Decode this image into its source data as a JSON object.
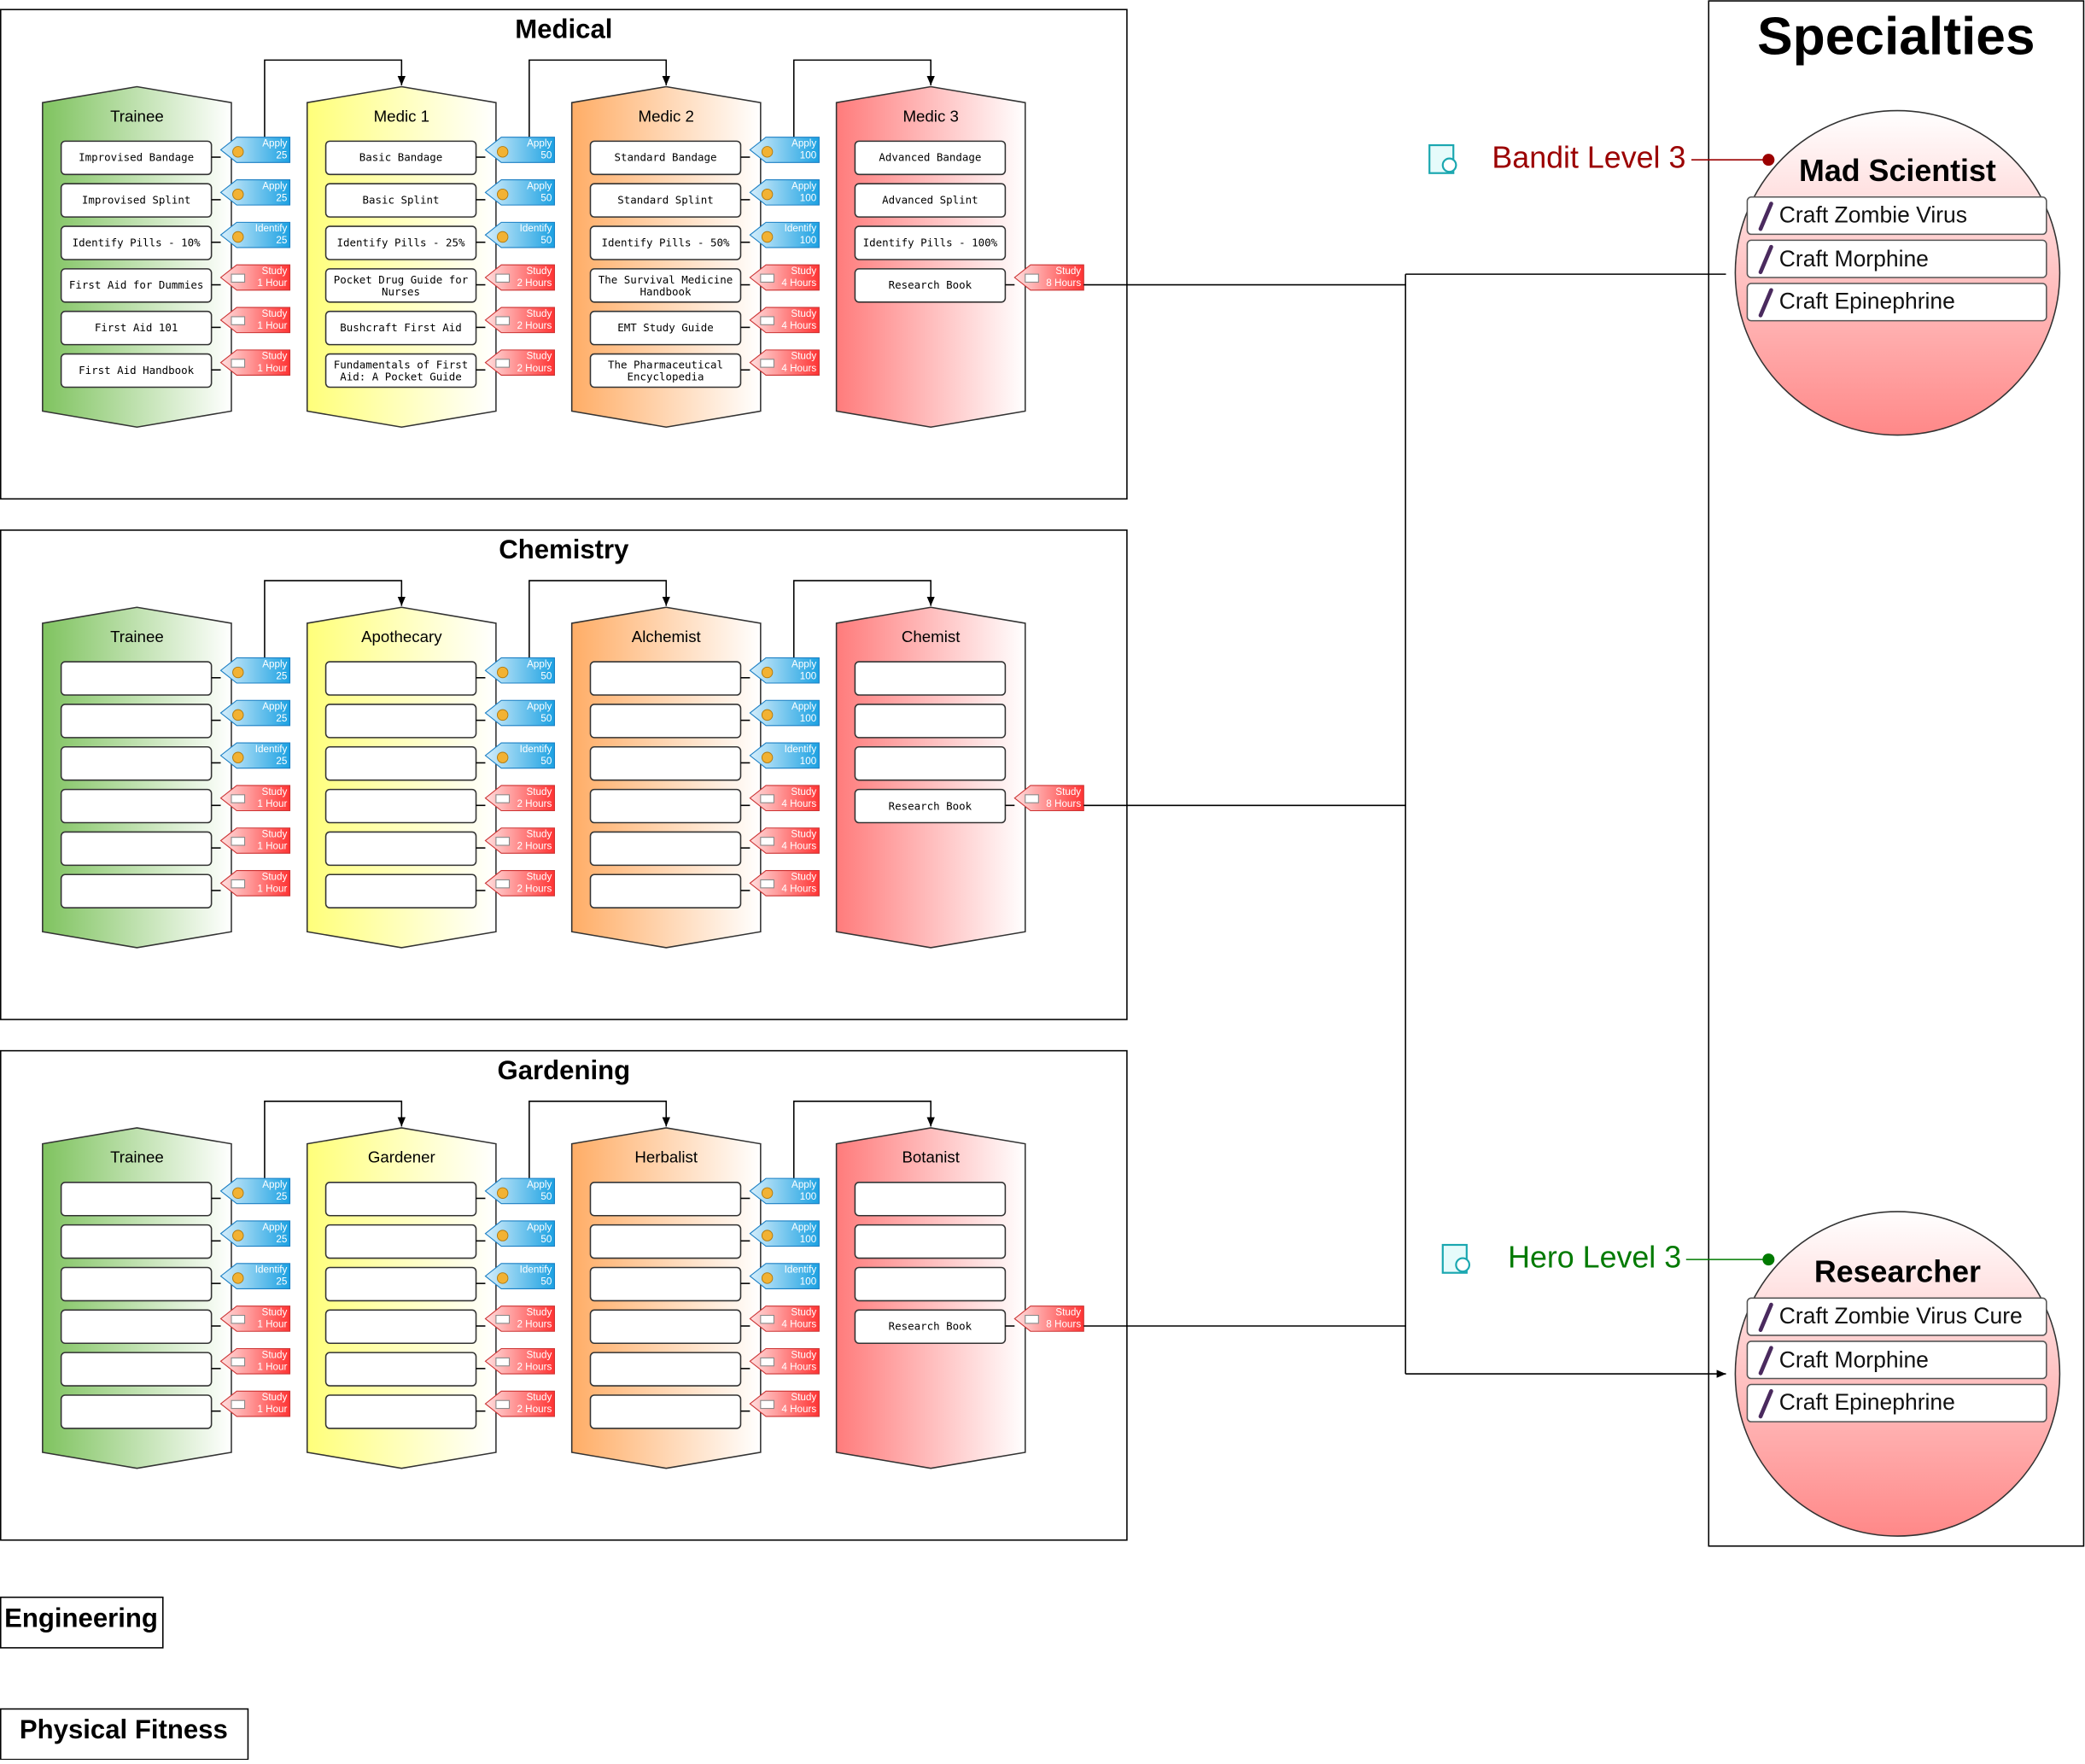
{
  "sections": [
    {
      "title": "Medical",
      "columns": [
        {
          "title": "Trainee",
          "items": [
            "Improvised Bandage",
            "Improvised Splint",
            "Identify Pills - 10%",
            "First Aid for Dummies",
            "First Aid 101",
            "First Aid Handbook"
          ],
          "tags": [
            [
              "Apply",
              "25"
            ],
            [
              "Apply",
              "25"
            ],
            [
              "Identify",
              "25"
            ],
            [
              "Study",
              "1 Hour"
            ],
            [
              "Study",
              "1 Hour"
            ],
            [
              "Study",
              "1 Hour"
            ]
          ]
        },
        {
          "title": "Medic 1",
          "items": [
            "Basic Bandage",
            "Basic Splint",
            "Identify Pills - 25%",
            "Pocket Drug Guide for Nurses",
            "Bushcraft First Aid",
            "Fundamentals of First Aid: A Pocket Guide"
          ],
          "tags": [
            [
              "Apply",
              "50"
            ],
            [
              "Apply",
              "50"
            ],
            [
              "Identify",
              "50"
            ],
            [
              "Study",
              "2 Hours"
            ],
            [
              "Study",
              "2 Hours"
            ],
            [
              "Study",
              "2 Hours"
            ]
          ]
        },
        {
          "title": "Medic 2",
          "items": [
            "Standard Bandage",
            "Standard Splint",
            "Identify Pills - 50%",
            "The Survival Medicine Handbook",
            "EMT Study Guide",
            "The Pharmaceutical Encyclopedia"
          ],
          "tags": [
            [
              "Apply",
              "100"
            ],
            [
              "Apply",
              "100"
            ],
            [
              "Identify",
              "100"
            ],
            [
              "Study",
              "4 Hours"
            ],
            [
              "Study",
              "4 Hours"
            ],
            [
              "Study",
              "4 Hours"
            ]
          ]
        },
        {
          "title": "Medic 3",
          "items": [
            "Advanced Bandage",
            "Advanced Splint",
            "Identify Pills - 100%",
            "Research Book"
          ],
          "tags": [
            null,
            null,
            null,
            [
              "Study",
              "8 Hours"
            ]
          ]
        }
      ]
    },
    {
      "title": "Chemistry",
      "columns": [
        {
          "title": "Trainee",
          "items": [
            null,
            null,
            null,
            null,
            null,
            null
          ],
          "tags": [
            [
              "Apply",
              "25"
            ],
            [
              "Apply",
              "25"
            ],
            [
              "Identify",
              "25"
            ],
            [
              "Study",
              "1 Hour"
            ],
            [
              "Study",
              "1 Hour"
            ],
            [
              "Study",
              "1 Hour"
            ]
          ]
        },
        {
          "title": "Apothecary",
          "items": [
            null,
            null,
            null,
            null,
            null,
            null
          ],
          "tags": [
            [
              "Apply",
              "50"
            ],
            [
              "Apply",
              "50"
            ],
            [
              "Identify",
              "50"
            ],
            [
              "Study",
              "2 Hours"
            ],
            [
              "Study",
              "2 Hours"
            ],
            [
              "Study",
              "2 Hours"
            ]
          ]
        },
        {
          "title": "Alchemist",
          "items": [
            null,
            null,
            null,
            null,
            null,
            null
          ],
          "tags": [
            [
              "Apply",
              "100"
            ],
            [
              "Apply",
              "100"
            ],
            [
              "Identify",
              "100"
            ],
            [
              "Study",
              "4 Hours"
            ],
            [
              "Study",
              "4 Hours"
            ],
            [
              "Study",
              "4 Hours"
            ]
          ]
        },
        {
          "title": "Chemist",
          "items": [
            null,
            null,
            null,
            "Research Book"
          ],
          "tags": [
            null,
            null,
            null,
            [
              "Study",
              "8 Hours"
            ]
          ]
        }
      ]
    },
    {
      "title": "Gardening",
      "columns": [
        {
          "title": "Trainee",
          "items": [
            null,
            null,
            null,
            null,
            null,
            null
          ],
          "tags": [
            [
              "Apply",
              "25"
            ],
            [
              "Apply",
              "25"
            ],
            [
              "Identify",
              "25"
            ],
            [
              "Study",
              "1 Hour"
            ],
            [
              "Study",
              "1 Hour"
            ],
            [
              "Study",
              "1 Hour"
            ]
          ]
        },
        {
          "title": "Gardener",
          "items": [
            null,
            null,
            null,
            null,
            null,
            null
          ],
          "tags": [
            [
              "Apply",
              "50"
            ],
            [
              "Apply",
              "50"
            ],
            [
              "Identify",
              "50"
            ],
            [
              "Study",
              "2 Hours"
            ],
            [
              "Study",
              "2 Hours"
            ],
            [
              "Study",
              "2 Hours"
            ]
          ]
        },
        {
          "title": "Herbalist",
          "items": [
            null,
            null,
            null,
            null,
            null,
            null
          ],
          "tags": [
            [
              "Apply",
              "100"
            ],
            [
              "Apply",
              "100"
            ],
            [
              "Identify",
              "100"
            ],
            [
              "Study",
              "4 Hours"
            ],
            [
              "Study",
              "4 Hours"
            ],
            [
              "Study",
              "4 Hours"
            ]
          ]
        },
        {
          "title": "Botanist",
          "items": [
            null,
            null,
            null,
            "Research Book"
          ],
          "tags": [
            null,
            null,
            null,
            [
              "Study",
              "8 Hours"
            ]
          ]
        }
      ]
    }
  ],
  "specialties": {
    "title": "Specialties",
    "cards": [
      {
        "name": "Mad Scientist",
        "requirement": "Bandit Level 3",
        "items": [
          "Craft Zombie Virus",
          "Craft Morphine",
          "Craft Epinephrine"
        ]
      },
      {
        "name": "Researcher",
        "requirement": "Hero Level 3",
        "items": [
          "Craft Zombie Virus Cure",
          "Craft Morphine",
          "Craft Epinephrine"
        ]
      }
    ]
  },
  "other_trees": [
    "Engineering",
    "Physical Fitness"
  ]
}
